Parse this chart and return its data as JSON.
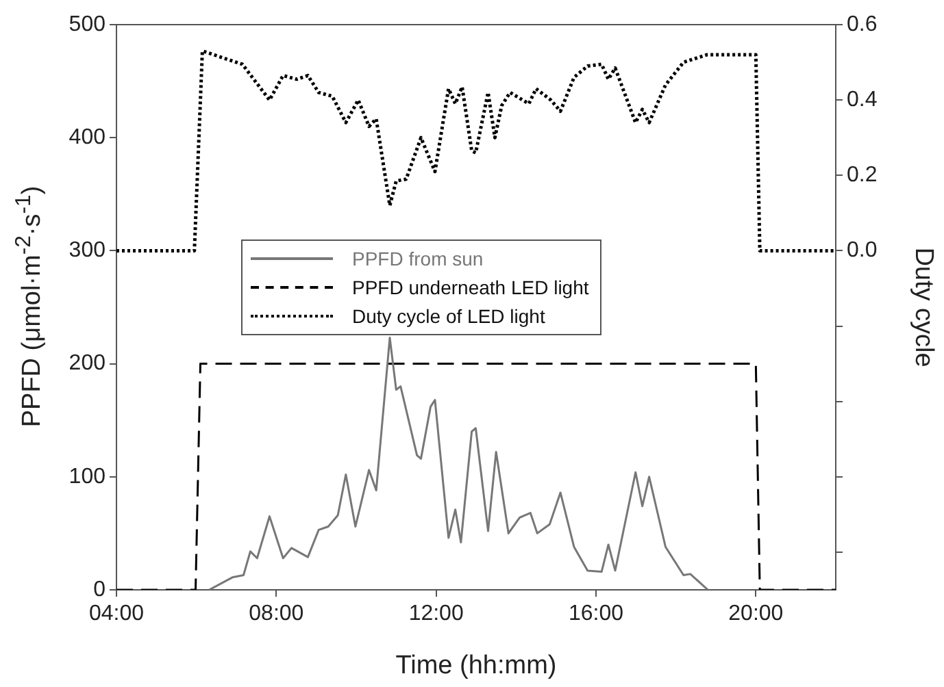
{
  "chart_data": {
    "type": "line",
    "xlabel": "Time (hh:mm)",
    "ylabel": "PPFD (μmol·m$^{-2}$·s$^{-1}$)",
    "y2label": "Duty cycle",
    "xlim": [
      4,
      22
    ],
    "xticks": [
      {
        "value": 4,
        "label": "04:00"
      },
      {
        "value": 8,
        "label": "08:00"
      },
      {
        "value": 12,
        "label": "12:00"
      },
      {
        "value": 16,
        "label": "16:00"
      },
      {
        "value": 20,
        "label": "20:00"
      }
    ],
    "ylim": [
      0,
      500
    ],
    "yticks": [
      0,
      100,
      200,
      300,
      400,
      500
    ],
    "y2lim": [
      -0.9,
      0.6
    ],
    "y2ticks": [
      {
        "value": -0.8,
        "label": null
      },
      {
        "value": -0.6,
        "label": null
      },
      {
        "value": -0.4,
        "label": null
      },
      {
        "value": -0.2,
        "label": null
      },
      {
        "value": 0,
        "label": "0.0"
      },
      {
        "value": 0.2,
        "label": "0.2"
      },
      {
        "value": 0.4,
        "label": "0.4"
      },
      {
        "value": 0.6,
        "label": "0.6"
      }
    ],
    "grid": false,
    "legend": "top",
    "marker": "none",
    "series": [
      {
        "name": "PPFD from sun",
        "color": "#777777",
        "line_style": "solid",
        "x": [
          6.32,
          6.9,
          7.18,
          7.35,
          7.52,
          7.83,
          8.17,
          8.38,
          8.79,
          9.06,
          9.3,
          9.54,
          9.74,
          9.98,
          10.32,
          10.5,
          10.84,
          11.0,
          11.11,
          11.52,
          11.62,
          11.86,
          11.97,
          12.31,
          12.48,
          12.62,
          12.89,
          12.99,
          13.3,
          13.5,
          13.81,
          14.09,
          14.36,
          14.53,
          14.84,
          15.11,
          15.45,
          15.79,
          16.14,
          16.31,
          16.48,
          16.99,
          17.16,
          17.33,
          17.74,
          18.19,
          18.36,
          18.8
        ],
        "values": [
          0,
          11,
          13,
          34,
          28,
          65,
          28,
          37,
          29,
          53,
          56,
          66,
          102,
          56,
          106,
          88,
          223,
          177,
          180,
          119,
          116,
          162,
          168,
          46,
          71,
          42,
          140,
          143,
          52,
          122,
          50,
          64,
          68,
          50,
          58,
          86,
          38,
          17,
          16,
          40,
          17,
          104,
          74,
          100,
          38,
          13,
          14,
          0
        ]
      },
      {
        "name": "PPFD underneath LED light",
        "color": "#000000",
        "line_style": "dashed",
        "x": [
          4,
          5.98,
          6.1,
          20.0,
          20.1,
          22
        ],
        "values": [
          0,
          0,
          200,
          200,
          0,
          0
        ]
      },
      {
        "name": "Duty cycle of LED light",
        "color": "#000000",
        "line_style": "dotted",
        "axis": "y2",
        "x": [
          4,
          5.95,
          6.15,
          7.15,
          7.83,
          8.17,
          8.51,
          8.79,
          9.06,
          9.4,
          9.74,
          10.05,
          10.32,
          10.5,
          10.84,
          11.0,
          11.25,
          11.62,
          11.97,
          12.31,
          12.48,
          12.65,
          12.89,
          12.99,
          13.3,
          13.47,
          13.64,
          13.85,
          14.32,
          14.5,
          14.87,
          15.11,
          15.45,
          15.79,
          16.14,
          16.31,
          16.48,
          16.99,
          17.16,
          17.33,
          17.74,
          18.19,
          18.77,
          20.0,
          20.1,
          22
        ],
        "values": [
          0,
          0,
          0.53,
          0.495,
          0.4,
          0.465,
          0.455,
          0.465,
          0.42,
          0.41,
          0.34,
          0.4,
          0.33,
          0.35,
          0.12,
          0.185,
          0.19,
          0.3,
          0.21,
          0.43,
          0.39,
          0.435,
          0.265,
          0.26,
          0.42,
          0.3,
          0.385,
          0.42,
          0.39,
          0.43,
          0.4,
          0.37,
          0.46,
          0.49,
          0.495,
          0.455,
          0.485,
          0.34,
          0.375,
          0.34,
          0.44,
          0.5,
          0.52,
          0.52,
          0,
          0
        ]
      }
    ]
  }
}
